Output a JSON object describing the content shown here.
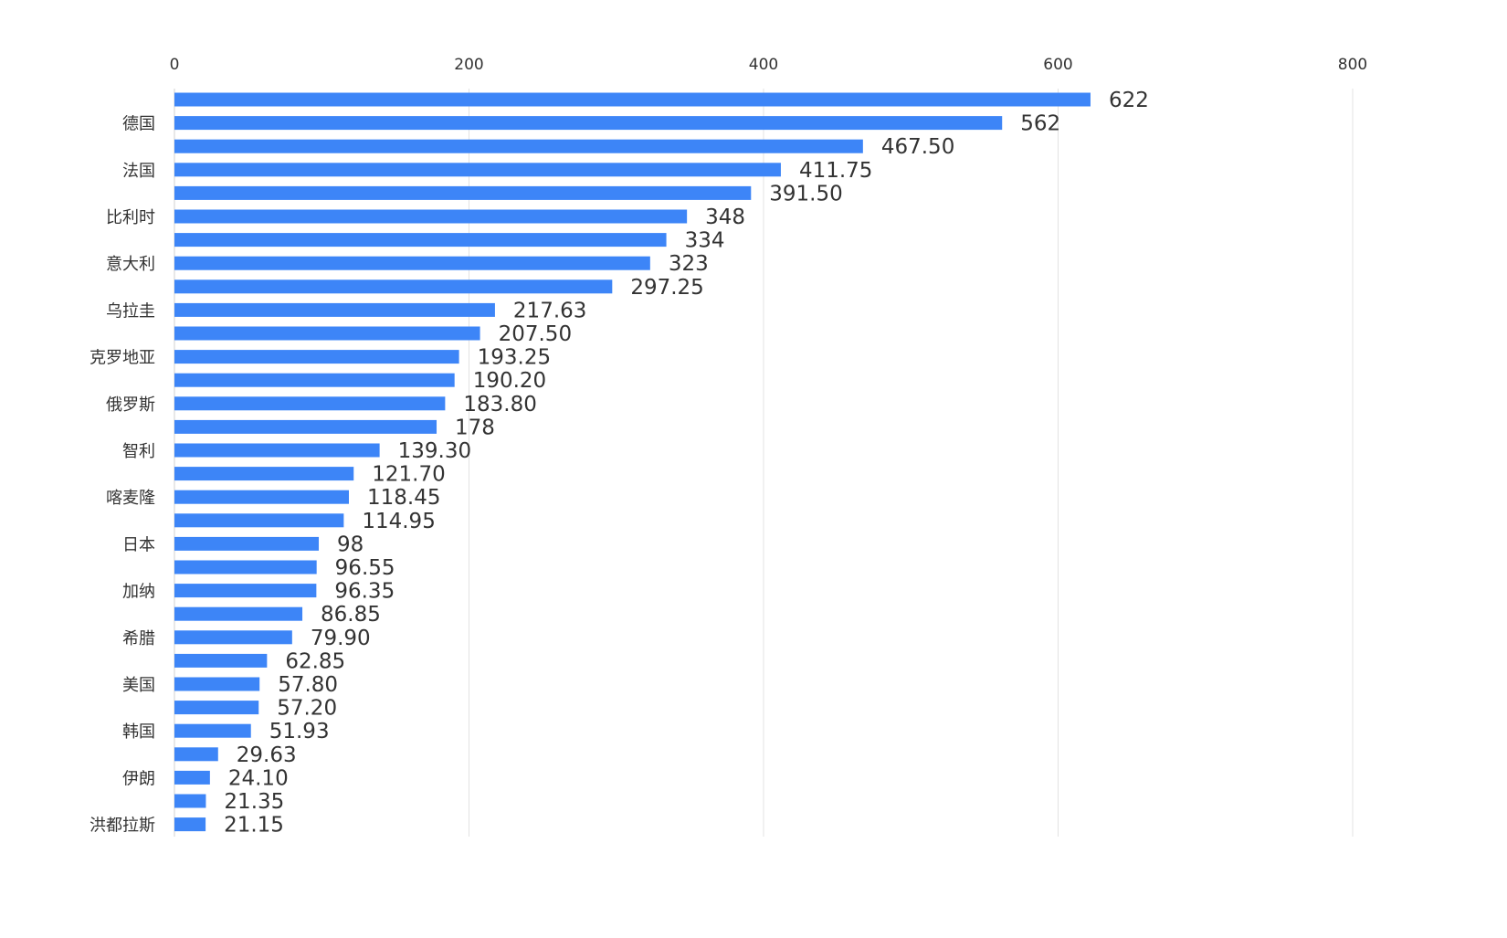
{
  "chart_data": {
    "type": "bar",
    "orientation": "horizontal",
    "xlim": [
      0,
      800
    ],
    "x_ticks": [
      "0",
      "200",
      "400",
      "600",
      "800"
    ],
    "grid": true,
    "legend": "none",
    "bar_color": "#3d85f7",
    "category_labels": [
      "德国",
      "法国",
      "比利时",
      "意大利",
      "乌拉圭",
      "克罗地亚",
      "俄罗斯",
      "智利",
      "喀麦隆",
      "日本",
      "加纳",
      "希腊",
      "美国",
      "韩国",
      "伊朗",
      "洪都拉斯"
    ],
    "values": [
      622,
      562,
      467.5,
      411.75,
      391.5,
      348,
      334,
      323,
      297.25,
      217.63,
      207.5,
      193.25,
      190.2,
      183.8,
      178,
      139.3,
      121.7,
      118.45,
      114.95,
      98,
      96.55,
      96.35,
      86.85,
      79.9,
      62.85,
      57.8,
      57.2,
      51.93,
      29.63,
      24.1,
      21.35,
      21.15
    ],
    "value_labels": [
      "622",
      "562",
      "467.50",
      "411.75",
      "391.50",
      "348",
      "334",
      "323",
      "297.25",
      "217.63",
      "207.50",
      "193.25",
      "190.20",
      "183.80",
      "178",
      "139.30",
      "121.70",
      "118.45",
      "114.95",
      "98",
      "96.55",
      "96.35",
      "86.85",
      "79.90",
      "62.85",
      "57.80",
      "57.20",
      "51.93",
      "29.63",
      "24.10",
      "21.35",
      "21.15"
    ]
  }
}
